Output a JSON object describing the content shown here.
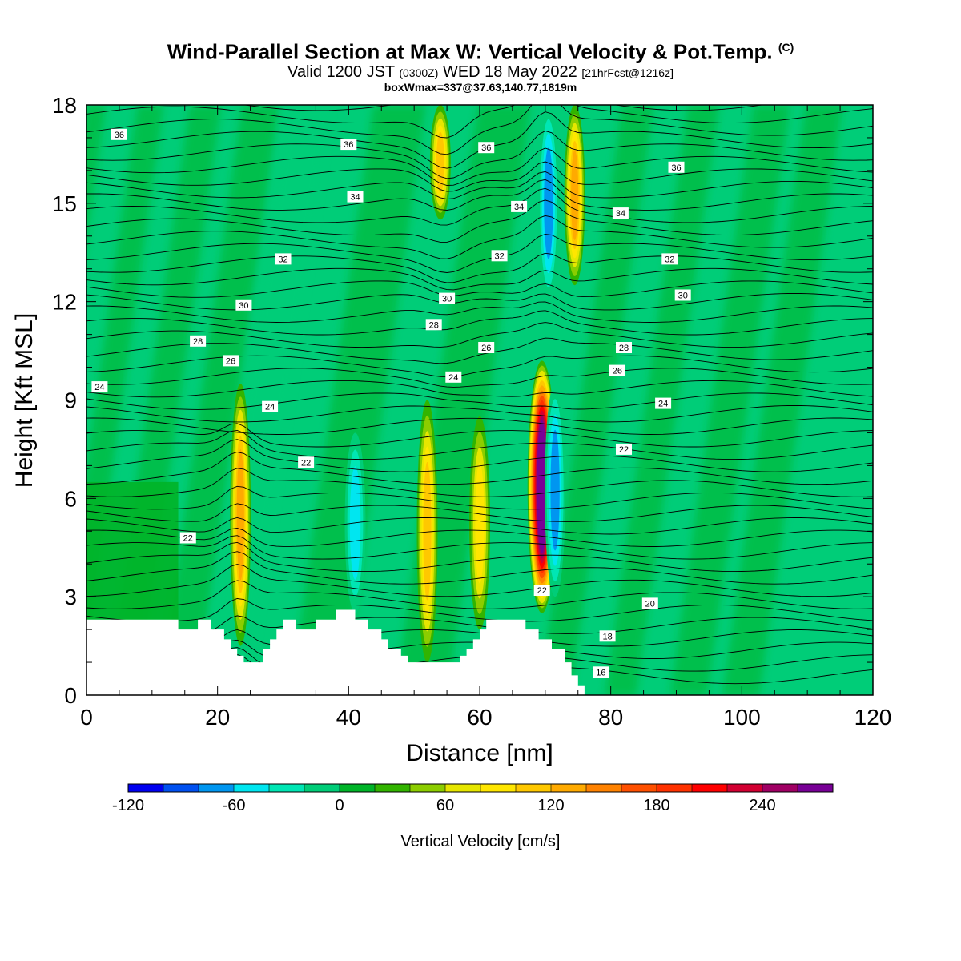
{
  "header": {
    "title": "Wind-Parallel Section at Max W: Vertical Velocity & Pot.Temp.",
    "copyright": "(C)",
    "valid_prefix": "Valid 1200 JST",
    "valid_zulu": "(0300Z)",
    "valid_date": "WED 18 May 2022",
    "forecast": "[21hrFcst@1216z]",
    "box_info": "boxWmax=337@37.63,140.77,1819m"
  },
  "chart_data": {
    "type": "heatmap",
    "xlabel": "Distance [nm]",
    "ylabel": "Height [Kft MSL]",
    "xlim": [
      0,
      120
    ],
    "ylim": [
      0,
      18
    ],
    "x_ticks": [
      "0",
      "20",
      "40",
      "60",
      "80",
      "100",
      "120"
    ],
    "y_ticks": [
      "0",
      "3",
      "6",
      "9",
      "12",
      "15",
      "18"
    ],
    "colorbar": {
      "title": "Vertical Velocity [cm/s]",
      "range": [
        -120,
        280
      ],
      "step": 20,
      "tick_labels": [
        "-120",
        "-60",
        "0",
        "60",
        "120",
        "180",
        "240"
      ],
      "colors": [
        "#0000f0",
        "#0050f0",
        "#0096f0",
        "#00e6f0",
        "#00e6b4",
        "#00cd78",
        "#00b428",
        "#32b400",
        "#8ccd00",
        "#e6e600",
        "#ffe600",
        "#ffc800",
        "#ffaa00",
        "#ff8200",
        "#ff5000",
        "#ff3200",
        "#ff0000",
        "#d20032",
        "#a00064",
        "#780096"
      ]
    },
    "vertical_velocity_features": [
      {
        "x": 23.5,
        "y_bottom": 1.5,
        "y_top": 9.5,
        "peak": 120
      },
      {
        "x": 41,
        "y_bottom": 2.5,
        "y_top": 8,
        "peak": -60
      },
      {
        "x": 52,
        "y_bottom": 1,
        "y_top": 9,
        "peak": 100
      },
      {
        "x": 60,
        "y_bottom": 2,
        "y_top": 8.5,
        "peak": 90
      },
      {
        "x": 69.5,
        "y_bottom": 2.5,
        "y_top": 10.2,
        "peak": 337
      },
      {
        "x": 71.5,
        "y_bottom": 3,
        "y_top": 9.5,
        "peak": -80
      },
      {
        "x": 54,
        "y_bottom": 14.5,
        "y_top": 18,
        "peak": 100
      },
      {
        "x": 74.5,
        "y_bottom": 12.5,
        "y_top": 18,
        "peak": 130
      },
      {
        "x": 70.5,
        "y_bottom": 12,
        "y_top": 18,
        "peak": -90
      }
    ],
    "potential_temperature_labels": [
      {
        "text": "36",
        "x": 5,
        "y": 17.1
      },
      {
        "text": "36",
        "x": 40,
        "y": 16.8
      },
      {
        "text": "36",
        "x": 61,
        "y": 16.7
      },
      {
        "text": "36",
        "x": 90,
        "y": 16.1
      },
      {
        "text": "34",
        "x": 41,
        "y": 15.2
      },
      {
        "text": "34",
        "x": 66,
        "y": 14.9
      },
      {
        "text": "34",
        "x": 81.5,
        "y": 14.7
      },
      {
        "text": "32",
        "x": 30,
        "y": 13.3
      },
      {
        "text": "32",
        "x": 63,
        "y": 13.4
      },
      {
        "text": "32",
        "x": 89,
        "y": 13.3
      },
      {
        "text": "30",
        "x": 24,
        "y": 11.9
      },
      {
        "text": "30",
        "x": 55,
        "y": 12.1
      },
      {
        "text": "30",
        "x": 91,
        "y": 12.2
      },
      {
        "text": "28",
        "x": 17,
        "y": 10.8
      },
      {
        "text": "28",
        "x": 53,
        "y": 11.3
      },
      {
        "text": "28",
        "x": 82,
        "y": 10.6
      },
      {
        "text": "26",
        "x": 22,
        "y": 10.2
      },
      {
        "text": "26",
        "x": 61,
        "y": 10.6
      },
      {
        "text": "26",
        "x": 81,
        "y": 9.9
      },
      {
        "text": "24",
        "x": 2,
        "y": 9.4
      },
      {
        "text": "24",
        "x": 28,
        "y": 8.8
      },
      {
        "text": "24",
        "x": 56,
        "y": 9.7
      },
      {
        "text": "24",
        "x": 88,
        "y": 8.9
      },
      {
        "text": "22",
        "x": 33.5,
        "y": 7.1
      },
      {
        "text": "22",
        "x": 82,
        "y": 7.5
      },
      {
        "text": "22",
        "x": 15.5,
        "y": 4.8
      },
      {
        "text": "22",
        "x": 69.5,
        "y": 3.2
      },
      {
        "text": "20",
        "x": 86,
        "y": 2.8
      },
      {
        "text": "18",
        "x": 79.5,
        "y": 1.8
      },
      {
        "text": "16",
        "x": 78.5,
        "y": 0.7
      }
    ],
    "terrain": [
      [
        0,
        2.3
      ],
      [
        14,
        2.3
      ],
      [
        14,
        2
      ],
      [
        17,
        2
      ],
      [
        17,
        2.3
      ],
      [
        19,
        2.3
      ],
      [
        19,
        2
      ],
      [
        21,
        2
      ],
      [
        21,
        1.7
      ],
      [
        22,
        1.7
      ],
      [
        22,
        1.4
      ],
      [
        23,
        1.4
      ],
      [
        23,
        1.2
      ],
      [
        24,
        1.2
      ],
      [
        24,
        1
      ],
      [
        27,
        1
      ],
      [
        27,
        1.4
      ],
      [
        28,
        1.4
      ],
      [
        28,
        1.7
      ],
      [
        29,
        1.7
      ],
      [
        29,
        2
      ],
      [
        30,
        2
      ],
      [
        30,
        2.3
      ],
      [
        32,
        2.3
      ],
      [
        32,
        2
      ],
      [
        35,
        2
      ],
      [
        35,
        2.3
      ],
      [
        38,
        2.3
      ],
      [
        38,
        2.6
      ],
      [
        41,
        2.6
      ],
      [
        41,
        2.3
      ],
      [
        43,
        2.3
      ],
      [
        43,
        2
      ],
      [
        45,
        2
      ],
      [
        45,
        1.7
      ],
      [
        46,
        1.7
      ],
      [
        46,
        1.4
      ],
      [
        48,
        1.4
      ],
      [
        48,
        1.2
      ],
      [
        49,
        1.2
      ],
      [
        49,
        1
      ],
      [
        57,
        1
      ],
      [
        57,
        1.2
      ],
      [
        58,
        1.2
      ],
      [
        58,
        1.4
      ],
      [
        59,
        1.4
      ],
      [
        59,
        1.7
      ],
      [
        60,
        1.7
      ],
      [
        60,
        2
      ],
      [
        61,
        2
      ],
      [
        61,
        2.3
      ],
      [
        67,
        2.3
      ],
      [
        67,
        2
      ],
      [
        69,
        2
      ],
      [
        69,
        1.7
      ],
      [
        71,
        1.7
      ],
      [
        71,
        1.4
      ],
      [
        73,
        1.4
      ],
      [
        73,
        1
      ],
      [
        74,
        1
      ],
      [
        74,
        0.6
      ],
      [
        75,
        0.6
      ],
      [
        75,
        0.3
      ],
      [
        76,
        0.3
      ],
      [
        76,
        0
      ]
    ]
  }
}
